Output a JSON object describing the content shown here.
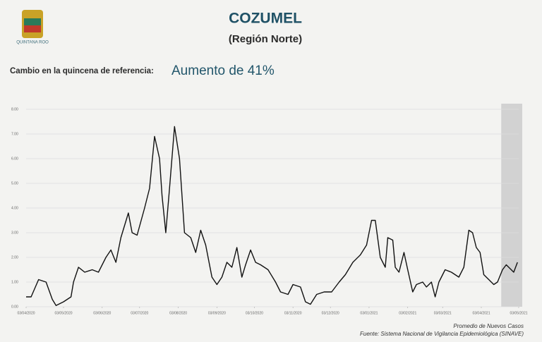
{
  "logo_text": "QUINTANA ROO",
  "chart_data": {
    "type": "line",
    "title": "COZUMEL",
    "subtitle": "(Región Norte)",
    "annotations": [
      "Cambio en la quincena de referencia:",
      "Aumento de 41%",
      "Promedio de Nuevos Casos",
      "Fuente: Sistema Nacional de Vigilancia Epidemiológica (SINAVE)"
    ],
    "x": [
      "03/04/2020",
      "07/04/2020",
      "13/04/2020",
      "19/04/2020",
      "24/04/2020",
      "27/04/2020",
      "03/05/2020",
      "09/05/2020",
      "11/05/2020",
      "15/05/2020",
      "20/05/2020",
      "26/05/2020",
      "31/05/2020",
      "06/06/2020",
      "10/06/2020",
      "14/06/2020",
      "18/06/2020",
      "24/06/2020",
      "27/06/2020",
      "01/07/2020",
      "07/07/2020",
      "11/07/2020",
      "15/07/2020",
      "19/07/2020",
      "21/07/2020",
      "24/07/2020",
      "27/07/2020",
      "31/07/2020",
      "04/08/2020",
      "06/08/2020",
      "08/08/2020",
      "13/08/2020",
      "17/08/2020",
      "21/08/2020",
      "25/08/2020",
      "30/08/2020",
      "03/09/2020",
      "07/09/2020",
      "11/09/2020",
      "15/09/2020",
      "19/09/2020",
      "23/09/2020",
      "26/09/2020",
      "30/09/2020",
      "04/10/2020",
      "08/10/2020",
      "14/10/2020",
      "20/10/2020",
      "24/10/2020",
      "30/10/2020",
      "03/11/2020",
      "09/11/2020",
      "13/11/2020",
      "17/11/2020",
      "22/11/2020",
      "28/11/2020",
      "04/12/2020",
      "10/12/2020",
      "15/12/2020",
      "21/12/2020",
      "27/12/2020",
      "01/01/2021",
      "05/01/2021",
      "08/01/2021",
      "12/01/2021",
      "16/01/2021",
      "18/01/2021",
      "22/01/2021",
      "24/01/2021",
      "27/01/2021",
      "31/01/2021",
      "03/02/2021",
      "07/02/2021",
      "10/02/2021",
      "15/02/2021",
      "18/02/2021",
      "22/02/2021",
      "25/02/2021",
      "28/02/2021",
      "05/03/2021",
      "10/03/2021",
      "16/03/2021",
      "20/03/2021",
      "24/03/2021",
      "27/03/2021",
      "30/03/2021",
      "02/04/2021",
      "05/04/2021",
      "09/04/2021",
      "13/04/2021",
      "16/04/2021",
      "20/04/2021",
      "23/04/2021",
      "27/04/2021",
      "29/04/2021",
      "02/05/2021"
    ],
    "series": [
      {
        "color": "#111111",
        "values": [
          0.4,
          0.4,
          1.1,
          1.0,
          0.3,
          0.05,
          0.2,
          0.4,
          1.0,
          1.6,
          1.4,
          1.5,
          1.4,
          2.0,
          2.3,
          1.8,
          2.8,
          3.8,
          3.0,
          2.9,
          4.0,
          4.8,
          6.9,
          6.0,
          4.5,
          3.0,
          4.8,
          7.3,
          6.0,
          4.5,
          3.0,
          2.8,
          2.2,
          3.1,
          2.5,
          1.2,
          0.9,
          1.2,
          1.8,
          1.6,
          2.4,
          1.2,
          1.7,
          2.3,
          1.8,
          1.7,
          1.5,
          1.0,
          0.6,
          0.5,
          0.9,
          0.8,
          0.2,
          0.1,
          0.5,
          0.6,
          0.6,
          1.0,
          1.3,
          1.8,
          2.1,
          2.5,
          3.5,
          3.5,
          2.0,
          1.6,
          2.8,
          2.7,
          1.6,
          1.4,
          2.2,
          1.5,
          0.6,
          0.9,
          1.0,
          0.8,
          1.0,
          0.4,
          1.0,
          1.5,
          1.4,
          1.2,
          1.6,
          3.1,
          3.0,
          2.4,
          2.2,
          1.3,
          1.1,
          0.9,
          1.0,
          1.5,
          1.7,
          1.5,
          1.4,
          1.8
        ]
      }
    ],
    "xlim": [
      "03/04/2020",
      "03/05/2021"
    ],
    "xticks": [
      "03/04/2020",
      "03/05/2020",
      "03/06/2020",
      "03/07/2020",
      "03/08/2020",
      "03/09/2020",
      "03/10/2020",
      "03/11/2020",
      "03/12/2020",
      "03/01/2021",
      "03/02/2021",
      "03/03/2021",
      "03/04/2021",
      "03/05/2021"
    ],
    "ylim": [
      0,
      8
    ],
    "yticks": [
      {
        "value": 0,
        "label": "0.00"
      },
      {
        "value": 1,
        "label": "1.00"
      },
      {
        "value": 2,
        "label": "2.00"
      },
      {
        "value": 3,
        "label": "3.00"
      },
      {
        "value": 4,
        "label": "4.00"
      },
      {
        "value": 5,
        "label": "5.00"
      },
      {
        "value": 6,
        "label": "6.00"
      },
      {
        "value": 7,
        "label": "7.00"
      },
      {
        "value": 8,
        "label": "8.00"
      }
    ],
    "grid": true,
    "highlight_from": "19/04/2021",
    "highlight_color": "#d2d2d2"
  }
}
